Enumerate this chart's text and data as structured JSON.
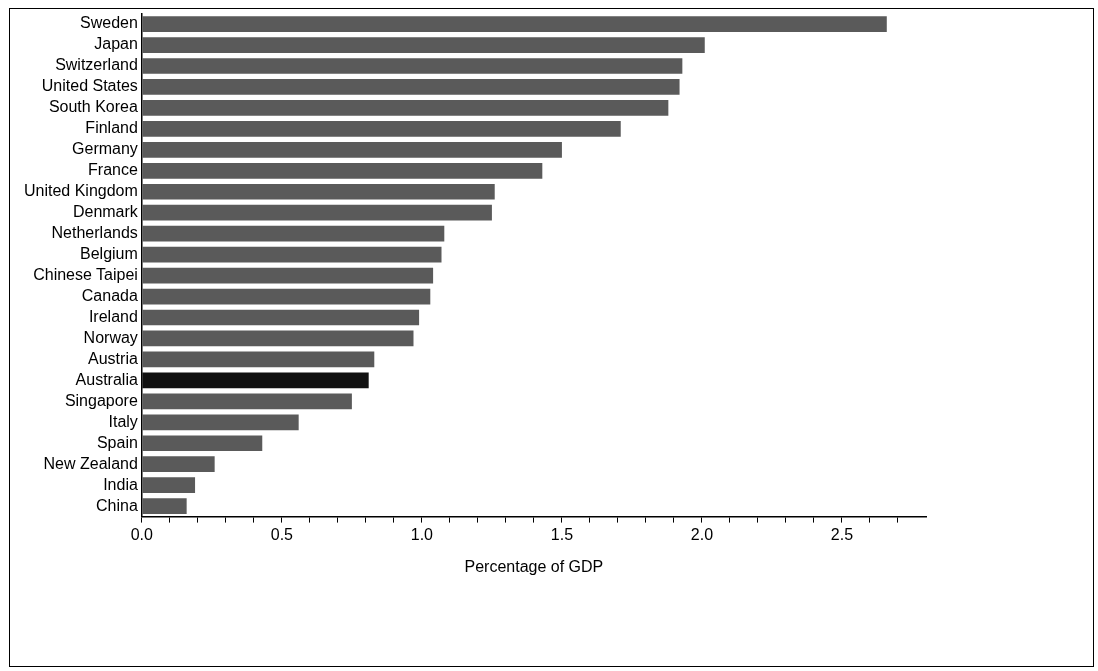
{
  "chart_data": {
    "type": "bar",
    "orientation": "horizontal",
    "xlabel": "Percentage of GDP",
    "categories": [
      "Sweden",
      "Japan",
      "Switzerland",
      "United States",
      "South Korea",
      "Finland",
      "Germany",
      "France",
      "United Kingdom",
      "Denmark",
      "Netherlands",
      "Belgium",
      "Chinese Taipei",
      "Canada",
      "Ireland",
      "Norway",
      "Austria",
      "Australia",
      "Singapore",
      "Italy",
      "Spain",
      "New Zealand",
      "India",
      "China"
    ],
    "values": [
      2.66,
      2.01,
      1.93,
      1.92,
      1.88,
      1.71,
      1.5,
      1.43,
      1.26,
      1.25,
      1.08,
      1.07,
      1.04,
      1.03,
      0.99,
      0.97,
      0.83,
      0.81,
      0.75,
      0.56,
      0.43,
      0.26,
      0.19,
      0.16
    ],
    "colors": [
      "#5a5a5a",
      "#5a5a5a",
      "#5a5a5a",
      "#5a5a5a",
      "#5a5a5a",
      "#5a5a5a",
      "#5a5a5a",
      "#5a5a5a",
      "#5a5a5a",
      "#5a5a5a",
      "#5a5a5a",
      "#5a5a5a",
      "#5a5a5a",
      "#5a5a5a",
      "#5a5a5a",
      "#5a5a5a",
      "#5a5a5a",
      "#111111",
      "#5a5a5a",
      "#5a5a5a",
      "#5a5a5a",
      "#5a5a5a",
      "#5a5a5a",
      "#5a5a5a"
    ],
    "xlim": [
      0,
      2.8
    ],
    "xticks": [
      {
        "value": 0,
        "label": "0.0"
      },
      {
        "value": 0.1,
        "label": null
      },
      {
        "value": 0.2,
        "label": null
      },
      {
        "value": 0.3,
        "label": null
      },
      {
        "value": 0.4,
        "label": null
      },
      {
        "value": 0.5,
        "label": "0.5"
      },
      {
        "value": 0.6,
        "label": null
      },
      {
        "value": 0.7,
        "label": null
      },
      {
        "value": 0.8,
        "label": null
      },
      {
        "value": 0.9,
        "label": null
      },
      {
        "value": 1,
        "label": "1.0"
      },
      {
        "value": 1.1,
        "label": null
      },
      {
        "value": 1.2,
        "label": null
      },
      {
        "value": 1.3,
        "label": null
      },
      {
        "value": 1.4,
        "label": null
      },
      {
        "value": 1.5,
        "label": "1.5"
      },
      {
        "value": 1.6,
        "label": null
      },
      {
        "value": 1.7,
        "label": null
      },
      {
        "value": 1.8,
        "label": null
      },
      {
        "value": 1.9,
        "label": null
      },
      {
        "value": 2,
        "label": "2.0"
      },
      {
        "value": 2.1,
        "label": null
      },
      {
        "value": 2.2,
        "label": null
      },
      {
        "value": 2.3,
        "label": null
      },
      {
        "value": 2.4,
        "label": null
      },
      {
        "value": 2.5,
        "label": "2.5"
      },
      {
        "value": 2.6,
        "label": null
      },
      {
        "value": 2.7,
        "label": null
      }
    ],
    "grid": false,
    "legend": false
  }
}
